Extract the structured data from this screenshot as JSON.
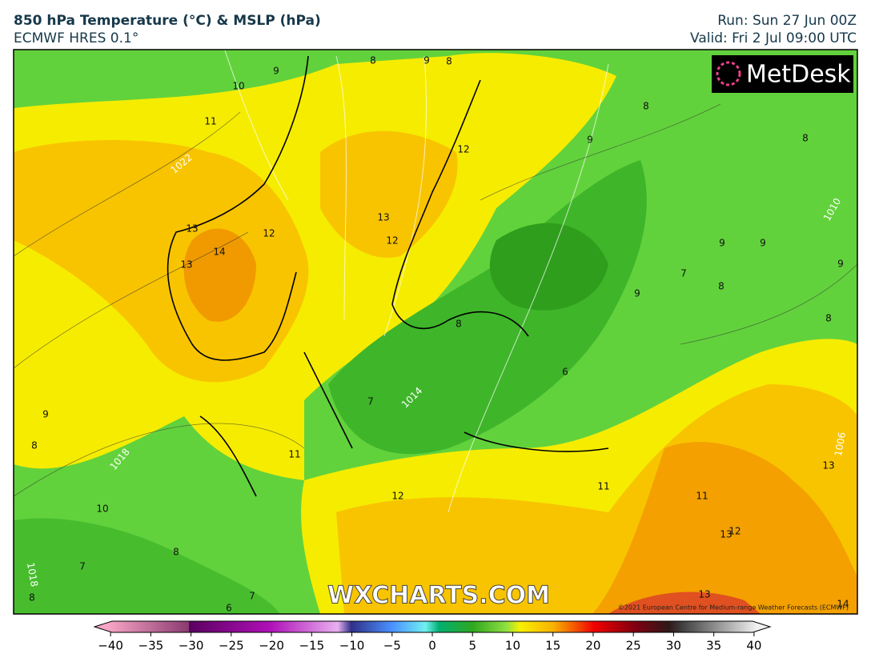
{
  "header": {
    "title": "850 hPa Temperature (°C) & MSLP (hPa)",
    "subtitle": "ECMWF HRES 0.1°",
    "run": "Run: Sun 27 Jun 00Z",
    "valid": "Valid: Fri 2 Jul 09:00 UTC"
  },
  "map": {
    "logo": "MetDesk",
    "watermark": "WXCHARTS.COM",
    "copyright": "©2021 European Centre for Medium-range Weather Forecasts (ECMWF)",
    "contour_labels": [
      9,
      8,
      9,
      8,
      10,
      11,
      1022,
      12,
      13,
      12,
      12,
      13,
      14,
      13,
      8,
      9,
      8,
      1010,
      9,
      9,
      9,
      7,
      8,
      9,
      8,
      8,
      6,
      7,
      1014,
      9,
      8,
      1018,
      11,
      1006,
      13,
      10,
      12,
      11,
      11,
      13,
      12,
      8,
      7,
      1018,
      8,
      7,
      6,
      13,
      14
    ]
  },
  "colorbar": {
    "range": [
      -42,
      42
    ],
    "ticks": [
      {
        "value": -40,
        "label": "−40"
      },
      {
        "value": -35,
        "label": "−35"
      },
      {
        "value": -30,
        "label": "−30"
      },
      {
        "value": -25,
        "label": "−25"
      },
      {
        "value": -20,
        "label": "−20"
      },
      {
        "value": -15,
        "label": "−15"
      },
      {
        "value": -10,
        "label": "−10"
      },
      {
        "value": -5,
        "label": "−5"
      },
      0,
      5,
      10,
      15,
      20,
      25,
      30,
      35,
      40
    ]
  }
}
